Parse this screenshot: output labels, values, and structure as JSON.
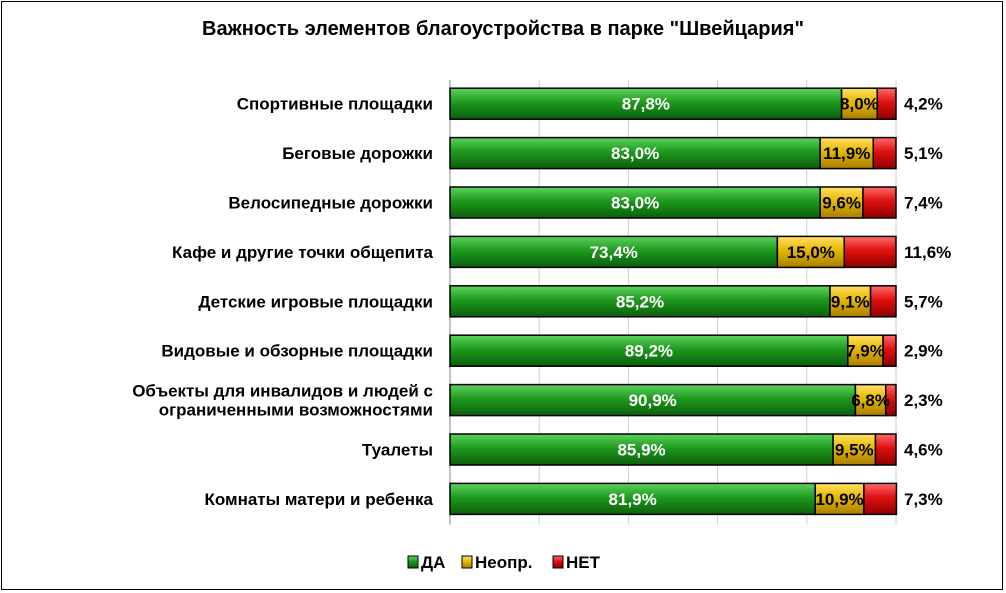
{
  "chart_data": {
    "type": "bar",
    "orientation": "horizontal",
    "stacked": true,
    "title": "Важность элементов благоустройства в парке \"Швейцария\"",
    "categories": [
      "Спортивные площадки",
      "Беговые дорожки",
      "Велосипедные дорожки",
      "Кафе и другие точки общепита",
      "Детские игровые площадки",
      "Видовые и обзорные площадки",
      "Объекты для инвалидов и людей с ограниченными возможностями",
      "Туалеты",
      "Комнаты матери и ребенка"
    ],
    "category_lines": [
      [
        "Спортивные площадки"
      ],
      [
        "Беговые дорожки"
      ],
      [
        "Велосипедные дорожки"
      ],
      [
        "Кафе и другие точки общепита"
      ],
      [
        "Детские игровые площадки"
      ],
      [
        "Видовые и обзорные площадки"
      ],
      [
        "Объекты для инвалидов и людей с",
        "ограниченными возможностями"
      ],
      [
        "Туалеты"
      ],
      [
        "Комнаты матери и ребенка"
      ]
    ],
    "series": [
      {
        "name": "ДА",
        "color": "#1e9a1e",
        "values": [
          87.8,
          83.0,
          83.0,
          73.4,
          85.2,
          89.2,
          90.9,
          85.9,
          81.9
        ],
        "labels": [
          "87,8%",
          "83,0%",
          "83,0%",
          "73,4%",
          "85,2%",
          "89,2%",
          "90,9%",
          "85,9%",
          "81,9%"
        ]
      },
      {
        "name": "Неопр.",
        "color": "#e6b800",
        "values": [
          8.0,
          11.9,
          9.6,
          15.0,
          9.1,
          7.9,
          6.8,
          9.5,
          10.9
        ],
        "labels": [
          "8,0%",
          "11,9%",
          "9,6%",
          "15,0%",
          "9,1%",
          "7,9%",
          "6,8%",
          "9,5%",
          "10,9%"
        ]
      },
      {
        "name": "НЕТ",
        "color": "#e01010",
        "values": [
          4.2,
          5.1,
          7.4,
          11.6,
          5.7,
          2.9,
          2.3,
          4.6,
          7.3
        ],
        "labels": [
          "4,2%",
          "5,1%",
          "7,4%",
          "11,6%",
          "5,7%",
          "2,9%",
          "2,3%",
          "4,6%",
          "7,3%"
        ]
      }
    ],
    "xlim": [
      0,
      100
    ],
    "grid": "vertical",
    "legend": "bottom"
  }
}
